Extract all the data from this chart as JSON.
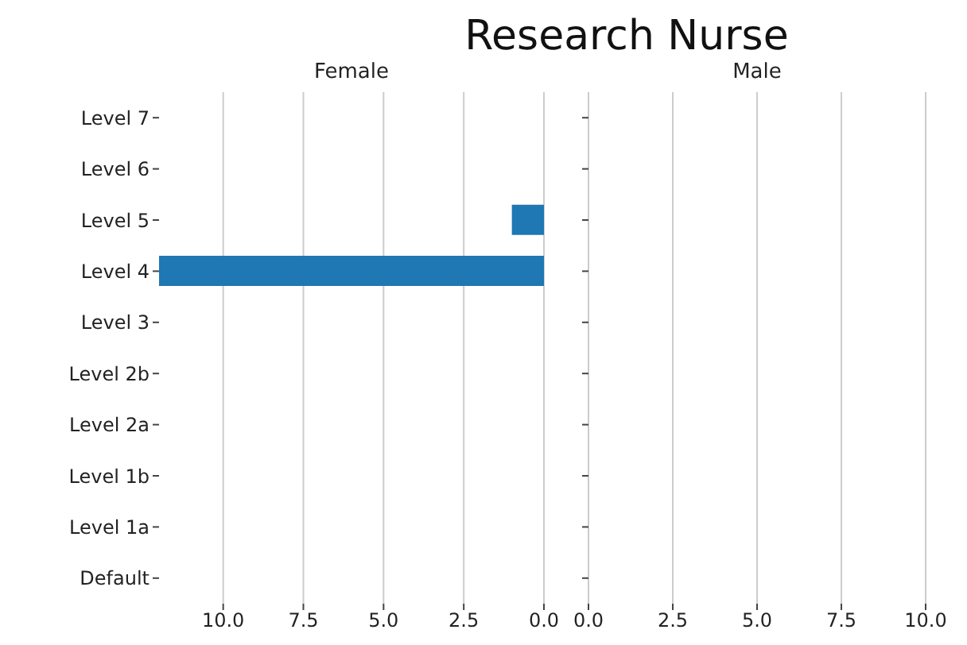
{
  "chart_data": [
    {
      "type": "bar",
      "title": "Research Nurse",
      "subtitle": "Female",
      "orientation": "horizontal",
      "categories": [
        "Level 7",
        "Level 6",
        "Level 5",
        "Level 4",
        "Level 3",
        "Level 2b",
        "Level 2a",
        "Level 1b",
        "Level 1a",
        "Default"
      ],
      "values": [
        0,
        0,
        1,
        12,
        0,
        0,
        0,
        0,
        0,
        0
      ],
      "color": "#1f77b4",
      "xlim": [
        12,
        0
      ],
      "xticks": [
        {
          "value": 10,
          "label": "10.0"
        },
        {
          "value": 7.5,
          "label": "7.5"
        },
        {
          "value": 5,
          "label": "5.0"
        },
        {
          "value": 2.5,
          "label": "2.5"
        },
        {
          "value": 0,
          "label": "0.0"
        }
      ],
      "grid": "x"
    },
    {
      "type": "bar",
      "subtitle": "Male",
      "orientation": "horizontal",
      "categories": [
        null,
        null,
        null,
        null,
        null,
        null,
        null,
        null,
        null,
        null
      ],
      "values": [
        0,
        0,
        0,
        0,
        0,
        0,
        0,
        0,
        0,
        0
      ],
      "color": "#1f77b4",
      "xlim": [
        0,
        10
      ],
      "xticks": [
        {
          "value": 0,
          "label": "0.0"
        },
        {
          "value": 2.5,
          "label": "2.5"
        },
        {
          "value": 5,
          "label": "5.0"
        },
        {
          "value": 7.5,
          "label": "7.5"
        },
        {
          "value": 10,
          "label": "10.0"
        }
      ],
      "grid": "x",
      "tick_labels": "x"
    }
  ]
}
